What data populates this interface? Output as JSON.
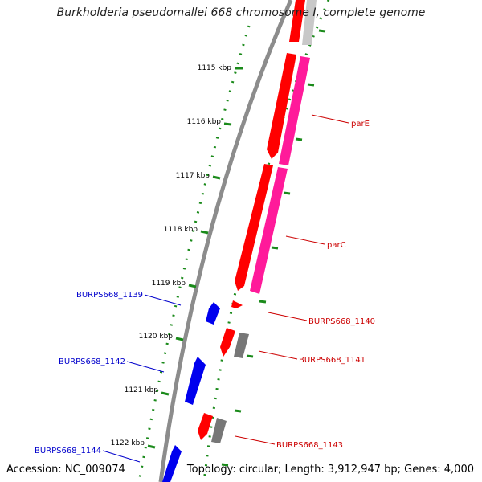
{
  "title": "Burkholderia pseudomallei 668 chromosome I, complete genome",
  "accession": "Accession: NC_009074",
  "summary": "Topology: circular; Length: 3,912,947 bp; Genes: 4,000",
  "colors": {
    "backbone": "#8c8c8c",
    "tick_dots": "#1a8a1a",
    "gene_red": "#ff0000",
    "gene_magenta": "#ff1a9a",
    "gene_gray": "#777777",
    "gene_lightgray": "#c8c8c8",
    "gene_blue": "#0000ee",
    "label_red": "#cc0000",
    "label_blue": "#0000cc"
  },
  "ticks": [
    {
      "label": "1115 kbp"
    },
    {
      "label": "1116 kbp"
    },
    {
      "label": "1117 kbp"
    },
    {
      "label": "1118 kbp"
    },
    {
      "label": "1119 kbp"
    },
    {
      "label": "1120 kbp"
    },
    {
      "label": "1121 kbp"
    },
    {
      "label": "1122 kbp"
    }
  ],
  "gene_labels": [
    {
      "name": "parE",
      "color": "red"
    },
    {
      "name": "parC",
      "color": "red"
    },
    {
      "name": "BURPS668_1140",
      "color": "red"
    },
    {
      "name": "BURPS668_1141",
      "color": "red"
    },
    {
      "name": "BURPS668_1143",
      "color": "red"
    },
    {
      "name": "BURPS668_1139",
      "color": "blue"
    },
    {
      "name": "BURPS668_1142",
      "color": "blue"
    },
    {
      "name": "BURPS668_1144",
      "color": "blue"
    }
  ]
}
